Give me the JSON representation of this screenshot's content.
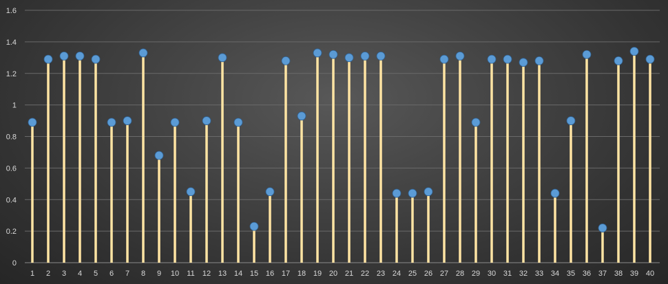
{
  "chart_data": {
    "type": "lollipop",
    "title": "",
    "xlabel": "",
    "ylabel": "",
    "ylim": [
      0,
      1.6
    ],
    "yticks": [
      0,
      0.2,
      0.4,
      0.6,
      0.8,
      1,
      1.2,
      1.4,
      1.6
    ],
    "ytick_labels": [
      "0",
      "0.2",
      "0.4",
      "0.6",
      "0.8",
      "1",
      "1.2",
      "1.4",
      "1.6"
    ],
    "grid": "horizontal",
    "legend": "none",
    "categories": [
      "1",
      "2",
      "3",
      "4",
      "5",
      "6",
      "7",
      "8",
      "9",
      "10",
      "11",
      "12",
      "13",
      "14",
      "15",
      "16",
      "17",
      "18",
      "19",
      "20",
      "21",
      "22",
      "23",
      "24",
      "25",
      "26",
      "27",
      "28",
      "29",
      "30",
      "31",
      "32",
      "33",
      "34",
      "35",
      "36",
      "37",
      "38",
      "39",
      "40"
    ],
    "values": [
      0.89,
      1.29,
      1.31,
      1.31,
      1.29,
      0.89,
      0.9,
      1.33,
      0.68,
      0.89,
      0.45,
      0.9,
      1.3,
      0.89,
      0.23,
      0.45,
      1.28,
      0.93,
      1.33,
      1.32,
      1.3,
      1.31,
      1.31,
      0.44,
      0.44,
      0.45,
      1.29,
      1.31,
      0.89,
      1.29,
      1.29,
      1.27,
      1.28,
      0.44,
      0.9,
      1.32,
      0.22,
      1.28,
      1.34,
      1.29
    ],
    "colors": {
      "stem": "#ffe4a3",
      "marker": "#5b9bd5",
      "gridline": "#6a6a6a",
      "text": "#d9d9d9"
    }
  }
}
